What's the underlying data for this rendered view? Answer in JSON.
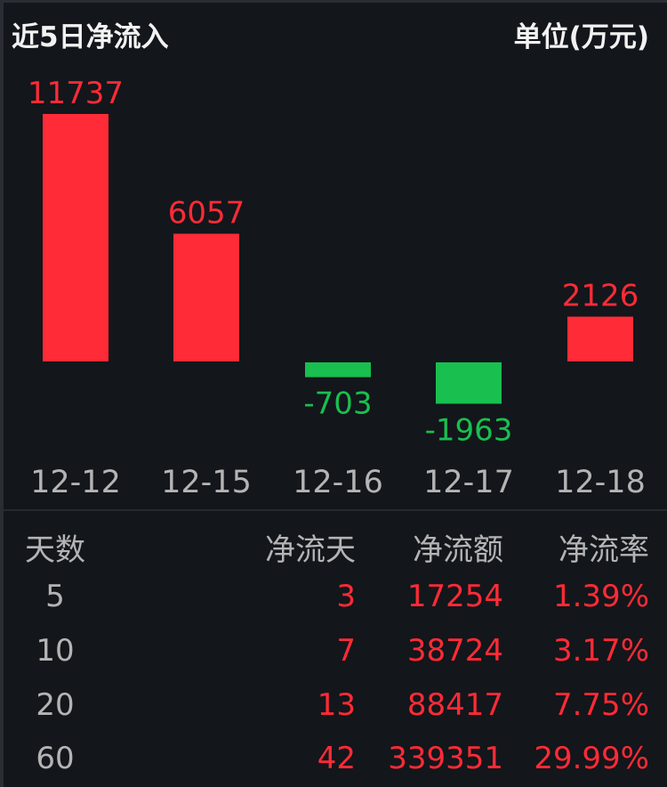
{
  "header": {
    "title": "近5日净流入",
    "unit": "单位(万元)"
  },
  "colors": {
    "positive": "#ff2b36",
    "negative": "#19bf4f",
    "axis_label": "#b4b4b4",
    "background": "#13161b"
  },
  "chart_data": {
    "type": "bar",
    "categories": [
      "12-12",
      "12-15",
      "12-16",
      "12-17",
      "12-18"
    ],
    "values": [
      11737,
      6057,
      -703,
      -1963,
      2126
    ],
    "data_labels": [
      "11737",
      "6057",
      "-703",
      "-1963",
      "2126"
    ],
    "grid": false
  },
  "table": {
    "headers": [
      "天数",
      "净流天",
      "净流额",
      "净流率"
    ],
    "rows": [
      [
        "5",
        "3",
        "17254",
        "1.39%"
      ],
      [
        "10",
        "7",
        "38724",
        "3.17%"
      ],
      [
        "20",
        "13",
        "88417",
        "7.75%"
      ],
      [
        "60",
        "42",
        "339351",
        "29.99%"
      ]
    ]
  }
}
